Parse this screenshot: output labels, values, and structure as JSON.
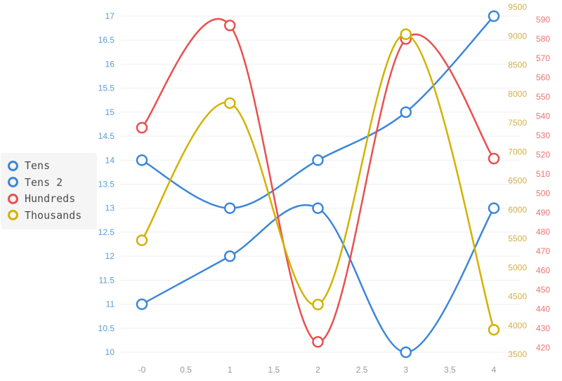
{
  "chart_data": {
    "type": "line",
    "title": "",
    "smooth": true,
    "grid": "horizontal-only",
    "legend_position": "left",
    "x_values": [
      0,
      1,
      2,
      3,
      4
    ],
    "x_tick_values": [
      0,
      0.5,
      1,
      1.5,
      2,
      2.5,
      3,
      3.5,
      4
    ],
    "x_tick_labels": [
      "-0",
      "0.5",
      "1",
      "1.5",
      "2",
      "2.5",
      "3",
      "3.5",
      "4"
    ],
    "x_label_color": "#999999",
    "gridline_color": "#efefef",
    "marker_fill": "#ffffff",
    "series": [
      {
        "name": "Tens",
        "axis": "tens",
        "color": "#3d86d8",
        "values": [
          11,
          12,
          13,
          10,
          13
        ]
      },
      {
        "name": "Tens 2",
        "axis": "tens",
        "color": "#3d86d8",
        "values": [
          14,
          13,
          14,
          15,
          17
        ]
      },
      {
        "name": "Hundreds",
        "axis": "hundreds",
        "color": "#e95050",
        "values": [
          534,
          587,
          423,
          580,
          518
        ]
      },
      {
        "name": "Thousands",
        "axis": "thousands",
        "color": "#d2b200",
        "values": [
          5470,
          7840,
          4360,
          9030,
          3925
        ]
      }
    ],
    "axes": [
      {
        "id": "tens",
        "side": "left",
        "min": 10,
        "max": 17,
        "step": 0.5,
        "label_color": "#579bdc"
      },
      {
        "id": "thousands",
        "side": "right",
        "min": 3500,
        "max": 9500,
        "step": 500,
        "label_color": "#d2b049"
      },
      {
        "id": "hundreds",
        "side": "right",
        "min": 420,
        "max": 590,
        "step": 10,
        "label_color": "#ee7272"
      }
    ]
  }
}
